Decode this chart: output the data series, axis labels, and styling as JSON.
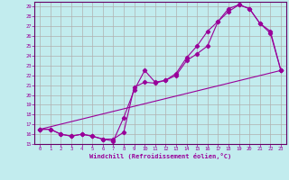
{
  "xlabel": "Windchill (Refroidissement éolien,°C)",
  "bg_color": "#c2ecee",
  "grid_color": "#b0b0b0",
  "line_color": "#990099",
  "spine_color": "#660066",
  "xlim": [
    -0.5,
    23.5
  ],
  "ylim": [
    15,
    29.5
  ],
  "xticks": [
    0,
    1,
    2,
    3,
    4,
    5,
    6,
    7,
    8,
    9,
    10,
    11,
    12,
    13,
    14,
    15,
    16,
    17,
    18,
    19,
    20,
    21,
    22,
    23
  ],
  "yticks": [
    15,
    16,
    17,
    18,
    19,
    20,
    21,
    22,
    23,
    24,
    25,
    26,
    27,
    28,
    29
  ],
  "line1_x": [
    0,
    1,
    2,
    3,
    4,
    5,
    6,
    7,
    8,
    9,
    10,
    11,
    12,
    13,
    14,
    15,
    16,
    17,
    18,
    19,
    20,
    21,
    22,
    23
  ],
  "line1_y": [
    16.5,
    16.5,
    16.0,
    15.8,
    16.0,
    15.8,
    15.5,
    15.3,
    17.7,
    20.5,
    22.5,
    21.3,
    21.5,
    22.2,
    23.8,
    25.0,
    26.5,
    27.5,
    28.5,
    29.2,
    28.8,
    27.3,
    26.5,
    22.5
  ],
  "line2_x": [
    0,
    1,
    2,
    3,
    4,
    5,
    6,
    7,
    8,
    9,
    10,
    11,
    12,
    13,
    14,
    15,
    16,
    17,
    18,
    19,
    20,
    21,
    22,
    23
  ],
  "line2_y": [
    16.5,
    16.5,
    16.0,
    15.8,
    16.0,
    15.8,
    15.5,
    15.5,
    16.2,
    20.8,
    21.3,
    21.2,
    21.5,
    22.0,
    23.5,
    24.2,
    25.0,
    27.5,
    28.8,
    29.2,
    28.8,
    27.3,
    26.3,
    22.5
  ],
  "line3_x": [
    0,
    23
  ],
  "line3_y": [
    16.5,
    22.5
  ]
}
